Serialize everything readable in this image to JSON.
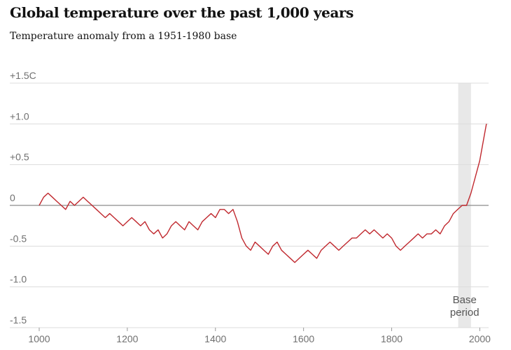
{
  "chart_data": {
    "type": "line",
    "title": "Global temperature over the past 1,000 years",
    "subtitle": "Temperature anomaly from a 1951-1980 base",
    "xlim": [
      1000,
      2020
    ],
    "ylim": [
      -1.5,
      1.5
    ],
    "x_ticks": [
      1000,
      1200,
      1400,
      1600,
      1800,
      2000
    ],
    "x_tick_labels": [
      "1000",
      "1200",
      "1400",
      "1600",
      "1800",
      "2000"
    ],
    "y_ticks": [
      1.5,
      1.0,
      0.5,
      0,
      -0.5,
      -1.0,
      -1.5
    ],
    "y_tick_labels": [
      "+1.5C",
      "+1.0",
      "+0.5",
      "0",
      "-0.5",
      "-1.0",
      "-1.5"
    ],
    "grid": true,
    "series_color": "#c0282e",
    "base_period": {
      "x": [
        1951,
        1980
      ],
      "label_line1": "Base",
      "label_line2": "period",
      "color": "#e8e8e8"
    },
    "series": [
      {
        "x": [
          1000,
          1010,
          1020,
          1030,
          1040,
          1050,
          1060,
          1070,
          1080,
          1090,
          1100,
          1110,
          1120,
          1130,
          1140,
          1150,
          1160,
          1170,
          1180,
          1190,
          1200,
          1210,
          1220,
          1230,
          1240,
          1250,
          1260,
          1270,
          1280,
          1290,
          1300,
          1310,
          1320,
          1330,
          1340,
          1350,
          1360,
          1370,
          1380,
          1390,
          1400,
          1410,
          1420,
          1430,
          1440,
          1450,
          1460,
          1470,
          1480,
          1490,
          1500,
          1510,
          1520,
          1530,
          1540,
          1550,
          1560,
          1570,
          1580,
          1590,
          1600,
          1610,
          1620,
          1630,
          1640,
          1650,
          1660,
          1670,
          1680,
          1690,
          1700,
          1710,
          1720,
          1730,
          1740,
          1750,
          1760,
          1770,
          1780,
          1790,
          1800,
          1810,
          1820,
          1830,
          1840,
          1850,
          1860,
          1870,
          1880,
          1890,
          1900,
          1910,
          1920,
          1930,
          1940,
          1950,
          1960,
          1970,
          1980,
          1990,
          2000,
          2010,
          2015
        ],
        "y": [
          0.0,
          0.1,
          0.15,
          0.1,
          0.05,
          0.0,
          -0.05,
          0.05,
          0.0,
          0.05,
          0.1,
          0.05,
          0.0,
          -0.05,
          -0.1,
          -0.15,
          -0.1,
          -0.15,
          -0.2,
          -0.25,
          -0.2,
          -0.15,
          -0.2,
          -0.25,
          -0.2,
          -0.3,
          -0.35,
          -0.3,
          -0.4,
          -0.35,
          -0.25,
          -0.2,
          -0.25,
          -0.3,
          -0.2,
          -0.25,
          -0.3,
          -0.2,
          -0.15,
          -0.1,
          -0.15,
          -0.05,
          -0.05,
          -0.1,
          -0.05,
          -0.2,
          -0.4,
          -0.5,
          -0.55,
          -0.45,
          -0.5,
          -0.55,
          -0.6,
          -0.5,
          -0.45,
          -0.55,
          -0.6,
          -0.65,
          -0.7,
          -0.65,
          -0.6,
          -0.55,
          -0.6,
          -0.65,
          -0.55,
          -0.5,
          -0.45,
          -0.5,
          -0.55,
          -0.5,
          -0.45,
          -0.4,
          -0.4,
          -0.35,
          -0.3,
          -0.35,
          -0.3,
          -0.35,
          -0.4,
          -0.35,
          -0.4,
          -0.5,
          -0.55,
          -0.5,
          -0.45,
          -0.4,
          -0.35,
          -0.4,
          -0.35,
          -0.35,
          -0.3,
          -0.35,
          -0.25,
          -0.2,
          -0.1,
          -0.05,
          0.0,
          0.0,
          0.15,
          0.35,
          0.55,
          0.85,
          1.0
        ]
      }
    ]
  }
}
